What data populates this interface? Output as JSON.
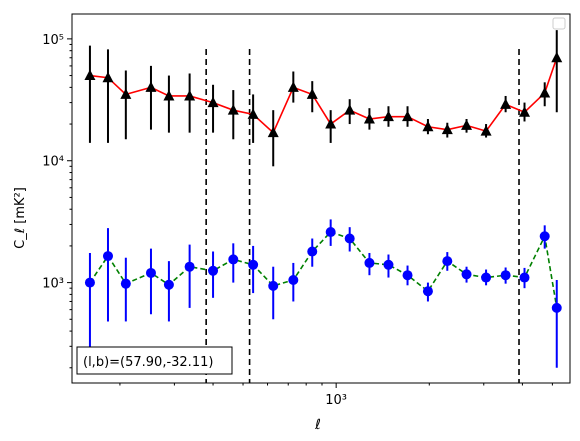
{
  "chart_data": {
    "type": "scatter",
    "title": "",
    "xlabel": "ℓ",
    "ylabel": "C_ℓ [mK²]",
    "x_scale": "log",
    "y_scale": "log",
    "xlim": [
      140,
      5700
    ],
    "ylim": [
      150,
      160000
    ],
    "x_tick_labels": [
      {
        "value": 1000,
        "label": "10³"
      }
    ],
    "y_tick_labels": [
      {
        "value": 1000,
        "label": "10³"
      },
      {
        "value": 10000,
        "label": "10⁴"
      },
      {
        "value": 100000,
        "label": "10⁵"
      }
    ],
    "vlines": [
      380,
      525,
      3900
    ],
    "annotation": "(l,b)=(57.90,-32.11)",
    "legend": {
      "placement": "top-right",
      "entries": []
    },
    "series": [
      {
        "color": "#000000",
        "line_color": "#ff0000",
        "line_style": "solid",
        "marker": "triangle",
        "points": [
          {
            "x": 160,
            "y": 50000,
            "lo": 14000,
            "hi": 88000
          },
          {
            "x": 183,
            "y": 48000,
            "lo": 14000,
            "hi": 82000
          },
          {
            "x": 209,
            "y": 35000,
            "lo": 15000,
            "hi": 55000
          },
          {
            "x": 252,
            "y": 40000,
            "lo": 18000,
            "hi": 60000
          },
          {
            "x": 288,
            "y": 34000,
            "lo": 17000,
            "hi": 50000
          },
          {
            "x": 336,
            "y": 34000,
            "lo": 17000,
            "hi": 52000
          },
          {
            "x": 400,
            "y": 30000,
            "lo": 17000,
            "hi": 42000
          },
          {
            "x": 465,
            "y": 26000,
            "lo": 15000,
            "hi": 38000
          },
          {
            "x": 539,
            "y": 24000,
            "lo": 14000,
            "hi": 35000
          },
          {
            "x": 626,
            "y": 17000,
            "lo": 9000,
            "hi": 26000
          },
          {
            "x": 727,
            "y": 40000,
            "lo": 30000,
            "hi": 54000
          },
          {
            "x": 837,
            "y": 35000,
            "lo": 25000,
            "hi": 45000
          },
          {
            "x": 960,
            "y": 20000,
            "lo": 14000,
            "hi": 26000
          },
          {
            "x": 1106,
            "y": 26000,
            "lo": 20000,
            "hi": 32000
          },
          {
            "x": 1281,
            "y": 22000,
            "lo": 18000,
            "hi": 27000
          },
          {
            "x": 1476,
            "y": 23000,
            "lo": 19000,
            "hi": 28000
          },
          {
            "x": 1701,
            "y": 23000,
            "lo": 19000,
            "hi": 28000
          },
          {
            "x": 1980,
            "y": 19000,
            "lo": 16500,
            "hi": 22000
          },
          {
            "x": 2287,
            "y": 18000,
            "lo": 15500,
            "hi": 20500
          },
          {
            "x": 2639,
            "y": 19500,
            "lo": 17000,
            "hi": 22000
          },
          {
            "x": 3052,
            "y": 17500,
            "lo": 15500,
            "hi": 20000
          },
          {
            "x": 3530,
            "y": 29000,
            "lo": 25000,
            "hi": 34000
          },
          {
            "x": 4063,
            "y": 25000,
            "lo": 21000,
            "hi": 30000
          },
          {
            "x": 4722,
            "y": 36000,
            "lo": 28000,
            "hi": 44000
          },
          {
            "x": 5165,
            "y": 70000,
            "lo": 25000,
            "hi": 118000
          }
        ]
      },
      {
        "color": "#0000ff",
        "line_color": "#008000",
        "line_style": "dashed",
        "marker": "circle",
        "points": [
          {
            "x": 160,
            "y": 1000,
            "lo": 200,
            "hi": 1750
          },
          {
            "x": 183,
            "y": 1650,
            "lo": 480,
            "hi": 2800
          },
          {
            "x": 209,
            "y": 980,
            "lo": 480,
            "hi": 1600
          },
          {
            "x": 252,
            "y": 1200,
            "lo": 550,
            "hi": 1900
          },
          {
            "x": 288,
            "y": 960,
            "lo": 480,
            "hi": 1500
          },
          {
            "x": 336,
            "y": 1350,
            "lo": 620,
            "hi": 2050
          },
          {
            "x": 400,
            "y": 1250,
            "lo": 750,
            "hi": 1800
          },
          {
            "x": 465,
            "y": 1550,
            "lo": 1000,
            "hi": 2100
          },
          {
            "x": 539,
            "y": 1400,
            "lo": 820,
            "hi": 2000
          },
          {
            "x": 626,
            "y": 940,
            "lo": 500,
            "hi": 1350
          },
          {
            "x": 727,
            "y": 1050,
            "lo": 700,
            "hi": 1450
          },
          {
            "x": 837,
            "y": 1800,
            "lo": 1350,
            "hi": 2300
          },
          {
            "x": 960,
            "y": 2600,
            "lo": 2000,
            "hi": 3300
          },
          {
            "x": 1106,
            "y": 2300,
            "lo": 1800,
            "hi": 2850
          },
          {
            "x": 1281,
            "y": 1450,
            "lo": 1150,
            "hi": 1750
          },
          {
            "x": 1476,
            "y": 1400,
            "lo": 1100,
            "hi": 1700
          },
          {
            "x": 1701,
            "y": 1150,
            "lo": 950,
            "hi": 1380
          },
          {
            "x": 1980,
            "y": 850,
            "lo": 700,
            "hi": 1000
          },
          {
            "x": 2287,
            "y": 1500,
            "lo": 1250,
            "hi": 1780
          },
          {
            "x": 2639,
            "y": 1170,
            "lo": 1000,
            "hi": 1350
          },
          {
            "x": 3052,
            "y": 1100,
            "lo": 950,
            "hi": 1280
          },
          {
            "x": 3530,
            "y": 1150,
            "lo": 980,
            "hi": 1330
          },
          {
            "x": 4063,
            "y": 1100,
            "lo": 900,
            "hi": 1320
          },
          {
            "x": 4722,
            "y": 2400,
            "lo": 1900,
            "hi": 2950
          },
          {
            "x": 5165,
            "y": 620,
            "lo": 200,
            "hi": 1050
          }
        ]
      }
    ]
  }
}
